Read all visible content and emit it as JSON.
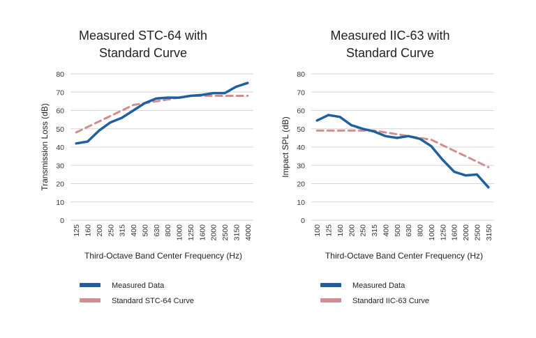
{
  "chart_data": [
    {
      "type": "line",
      "title_lines": [
        "Measured STC-64 with",
        "Standard Curve"
      ],
      "xlabel": "Third-Octave Band Center Frequency (Hz)",
      "ylabel": "Transmission Loss (dB)",
      "ylim": [
        0,
        80
      ],
      "yticks": [
        0,
        10,
        20,
        30,
        40,
        50,
        60,
        70,
        80
      ],
      "grid": true,
      "categories": [
        "125",
        "160",
        "200",
        "250",
        "315",
        "400",
        "500",
        "630",
        "800",
        "1000",
        "1250",
        "1600",
        "2000",
        "2500",
        "3150",
        "4000"
      ],
      "series": [
        {
          "name": "Measured Data",
          "color": "#1f5f9e",
          "style": "solid",
          "values": [
            42,
            43,
            49,
            53.5,
            56,
            60,
            64,
            66.5,
            67,
            67,
            68,
            68.5,
            69.5,
            69.5,
            73,
            75
          ]
        },
        {
          "name": "Standard STC-64 Curve",
          "color": "#cf8f8f",
          "style": "dashed",
          "values": [
            48,
            51,
            54,
            57,
            60,
            63,
            64,
            65,
            66,
            67,
            68,
            68,
            68,
            68,
            68,
            68
          ]
        }
      ],
      "legend_position": "bottom-left"
    },
    {
      "type": "line",
      "title_lines": [
        "Measured IIC-63 with",
        "Standard Curve"
      ],
      "xlabel": "Third-Octave Band Center Frequency (Hz)",
      "ylabel": "Impact  SPL (dB)",
      "ylim": [
        0,
        80
      ],
      "yticks": [
        0,
        10,
        20,
        30,
        40,
        50,
        60,
        70,
        80
      ],
      "grid": true,
      "categories": [
        "100",
        "125",
        "160",
        "200",
        "250",
        "315",
        "400",
        "500",
        "630",
        "800",
        "1000",
        "1250",
        "1600",
        "2000",
        "2500",
        "3150"
      ],
      "series": [
        {
          "name": "Measured Data",
          "color": "#1f5f9e",
          "style": "solid",
          "values": [
            54.5,
            57.5,
            56.5,
            52,
            50,
            48.5,
            46,
            45,
            46,
            44.5,
            40.5,
            33,
            26.5,
            24.5,
            25,
            18
          ]
        },
        {
          "name": "Standard IIC-63 Curve",
          "color": "#cf8f8f",
          "style": "dashed",
          "values": [
            49,
            49,
            49,
            49,
            49,
            49,
            48,
            47,
            46,
            45,
            44,
            41,
            38,
            35,
            32,
            29
          ]
        }
      ],
      "legend_position": "bottom-left"
    }
  ]
}
